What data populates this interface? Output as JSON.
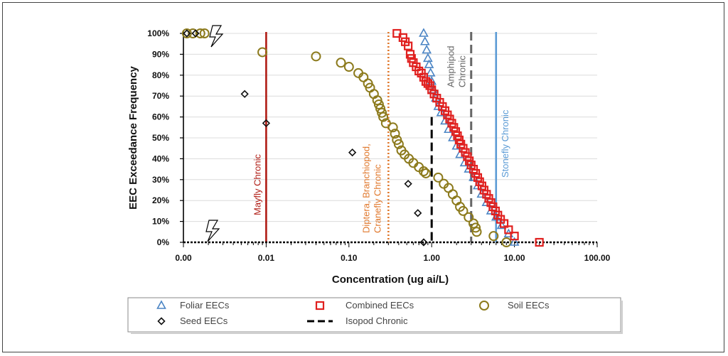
{
  "chart_data": {
    "type": "scatter",
    "title": "",
    "xlabel": "Concentration (ug ai/L)",
    "ylabel": "EEC Exceedance Frequency",
    "x_scale": "log",
    "xlim": [
      0.001,
      100
    ],
    "ylim": [
      0,
      100
    ],
    "x_ticks": [
      "0.00",
      "0.01",
      "0.10",
      "1.00",
      "10.00",
      "100.00"
    ],
    "x_tick_values": [
      0.001,
      0.01,
      0.1,
      1,
      10,
      100
    ],
    "y_ticks": [
      "0%",
      "10%",
      "20%",
      "30%",
      "40%",
      "50%",
      "60%",
      "70%",
      "80%",
      "90%",
      "100%"
    ],
    "y_tick_values": [
      0,
      10,
      20,
      30,
      40,
      50,
      60,
      70,
      80,
      90,
      100
    ],
    "grid": "horizontal",
    "legend_position": "bottom",
    "series": [
      {
        "name": "Foliar EECs",
        "marker": "triangle",
        "color": "#4a84c4",
        "x": [
          0.8,
          0.83,
          0.87,
          0.9,
          0.93,
          0.97,
          1.0,
          1.05,
          1.12,
          1.2,
          1.3,
          1.45,
          1.6,
          1.8,
          2.0,
          2.2,
          2.5,
          2.8,
          3.2,
          3.6,
          4.0,
          4.6,
          5.2,
          6.0,
          7.0,
          8.5,
          10.0
        ],
        "y": [
          100,
          96,
          92,
          88,
          85,
          81,
          77,
          73,
          69,
          65,
          62,
          58,
          54,
          50,
          46,
          42,
          38,
          35,
          31,
          27,
          23,
          19,
          15,
          12,
          8,
          4,
          0
        ]
      },
      {
        "name": "Combined EECs",
        "marker": "square",
        "color": "#e0201f",
        "x": [
          0.38,
          0.45,
          0.48,
          0.52,
          0.55,
          0.57,
          0.6,
          0.65,
          0.7,
          0.75,
          0.8,
          0.85,
          0.9,
          0.95,
          1.0,
          1.07,
          1.15,
          1.25,
          1.35,
          1.45,
          1.55,
          1.65,
          1.75,
          1.85,
          1.95,
          2.05,
          2.15,
          2.25,
          2.4,
          2.55,
          2.7,
          2.85,
          3.0,
          3.2,
          3.4,
          3.6,
          3.8,
          4.05,
          4.3,
          4.6,
          4.9,
          5.2,
          5.5,
          5.9,
          6.3,
          6.8,
          7.5,
          8.5,
          10.0,
          20.0
        ],
        "y": [
          100,
          98,
          96,
          94,
          90,
          88,
          86,
          84,
          82,
          81,
          79,
          77,
          76,
          75,
          73,
          71,
          69,
          67,
          65,
          63,
          61,
          59,
          57,
          55,
          53,
          51,
          49,
          47,
          45,
          43,
          41,
          39,
          37,
          35,
          33,
          31,
          29,
          27,
          25,
          23,
          21,
          19,
          17,
          15,
          13,
          11,
          9,
          6,
          3,
          0
        ]
      },
      {
        "name": "Soil EECs",
        "marker": "circle",
        "color": "#8c7a1c",
        "x": [
          0.0011,
          0.0013,
          0.0016,
          0.0018,
          0.009,
          0.04,
          0.08,
          0.1,
          0.13,
          0.15,
          0.17,
          0.18,
          0.2,
          0.22,
          0.23,
          0.24,
          0.25,
          0.26,
          0.28,
          0.34,
          0.36,
          0.38,
          0.4,
          0.43,
          0.47,
          0.53,
          0.6,
          0.7,
          0.8,
          0.85,
          1.2,
          1.4,
          1.6,
          1.8,
          2.0,
          2.2,
          2.4,
          2.8,
          3.2,
          3.4,
          3.5,
          5.6,
          8.0
        ],
        "y": [
          100,
          100,
          100,
          100,
          91,
          89,
          86,
          84,
          81,
          79,
          76,
          74,
          71,
          68,
          66,
          64,
          62,
          60,
          57,
          55,
          52,
          49,
          47,
          44,
          42,
          40,
          38,
          36,
          34,
          33,
          31,
          28,
          26,
          23,
          20,
          17,
          15,
          12,
          9,
          7,
          5,
          3,
          0
        ]
      },
      {
        "name": "Seed EECs",
        "marker": "diamond",
        "color": "#111111",
        "x": [
          0.0011,
          0.0014,
          0.0055,
          0.01,
          0.11,
          0.52,
          0.68,
          0.8
        ],
        "y": [
          100,
          100,
          71,
          57,
          43,
          28,
          14,
          0
        ]
      }
    ],
    "reference_lines": [
      {
        "name": "Mayfly Chronic",
        "x": 0.01,
        "color": "#b01c14",
        "style": "solid",
        "label": "Mayfly Chronic"
      },
      {
        "name": "Diptera, Branchiopod, Cranefly Chronic",
        "x": 0.3,
        "color": "#e0782c",
        "style": "dotted",
        "label_lines": [
          "Diptera, Branchiopod,",
          "Cranefly Chronic"
        ]
      },
      {
        "name": "Isopod Chronic",
        "x": 1.0,
        "color": "#000000",
        "style": "dashed",
        "label": ""
      },
      {
        "name": "Amphipod Chronic",
        "x": 3.0,
        "color": "#666666",
        "style": "dashed",
        "label_lines": [
          "Amphipod",
          "Chronic"
        ]
      },
      {
        "name": "Stonefly Chronic",
        "x": 6.0,
        "color": "#5b9bd5",
        "style": "solid",
        "label": "Stonefly Chronic"
      }
    ],
    "legend": [
      {
        "label": "Foliar EECs",
        "marker": "triangle",
        "color": "#4a84c4"
      },
      {
        "label": "Combined EECs",
        "marker": "square",
        "color": "#e0201f"
      },
      {
        "label": "Soil EECs",
        "marker": "circle",
        "color": "#8c7a1c"
      },
      {
        "label": "Seed EECs",
        "marker": "diamond",
        "color": "#111111"
      },
      {
        "label": "Isopod Chronic",
        "marker": "dashed-line",
        "color": "#000000"
      }
    ]
  }
}
